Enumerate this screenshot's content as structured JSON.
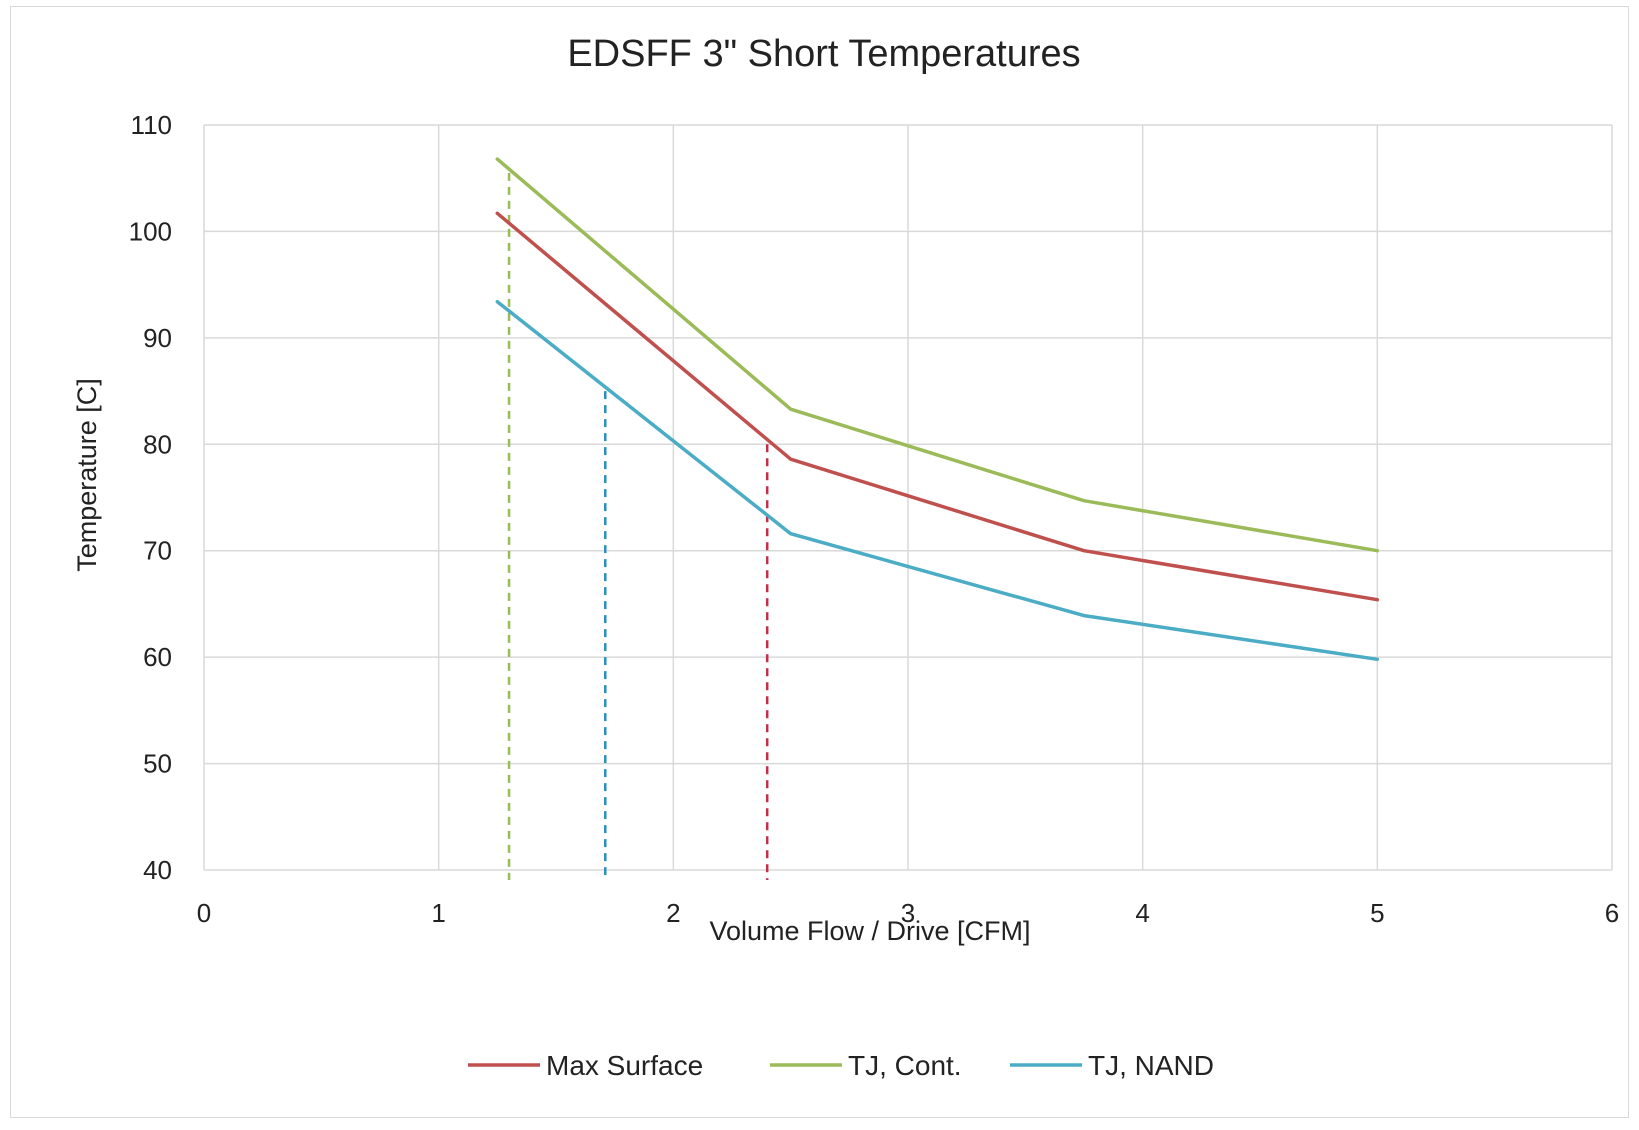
{
  "chart_data": {
    "type": "line",
    "title": "EDSFF 3\" Short Temperatures",
    "xlabel": "Volume Flow / Drive [CFM]",
    "ylabel": "Temperature [C]",
    "xlim": [
      0,
      6
    ],
    "ylim": [
      40,
      110
    ],
    "xticks": [
      "0",
      "1",
      "2",
      "3",
      "4",
      "5",
      "6"
    ],
    "yticks": [
      "40",
      "50",
      "60",
      "70",
      "80",
      "90",
      "100",
      "110"
    ],
    "grid": true,
    "legend_position": "bottom",
    "x": [
      1.25,
      2.5,
      3.75,
      5
    ],
    "series": [
      {
        "name": "Max Surface",
        "color": "#c0504d",
        "values": [
          101.7,
          78.6,
          70.0,
          65.4
        ]
      },
      {
        "name": "TJ, Cont.",
        "color": "#9bbb59",
        "values": [
          106.8,
          83.3,
          74.7,
          70.0
        ]
      },
      {
        "name": "TJ, NAND",
        "color": "#4bacc6",
        "values": [
          93.4,
          71.6,
          63.9,
          59.8
        ]
      }
    ],
    "reference_lines": [
      {
        "series": "TJ, Cont.",
        "x": 1.3,
        "y_top": 105.5,
        "color": "#9bbb59",
        "style": "dashed"
      },
      {
        "series": "TJ, NAND",
        "x": 1.71,
        "y_top": 85.0,
        "color": "#2a8fc0",
        "style": "dashed"
      },
      {
        "series": "Max Surface",
        "x": 2.4,
        "y_top": 80.0,
        "color": "#c0304a",
        "style": "dashed"
      }
    ]
  }
}
